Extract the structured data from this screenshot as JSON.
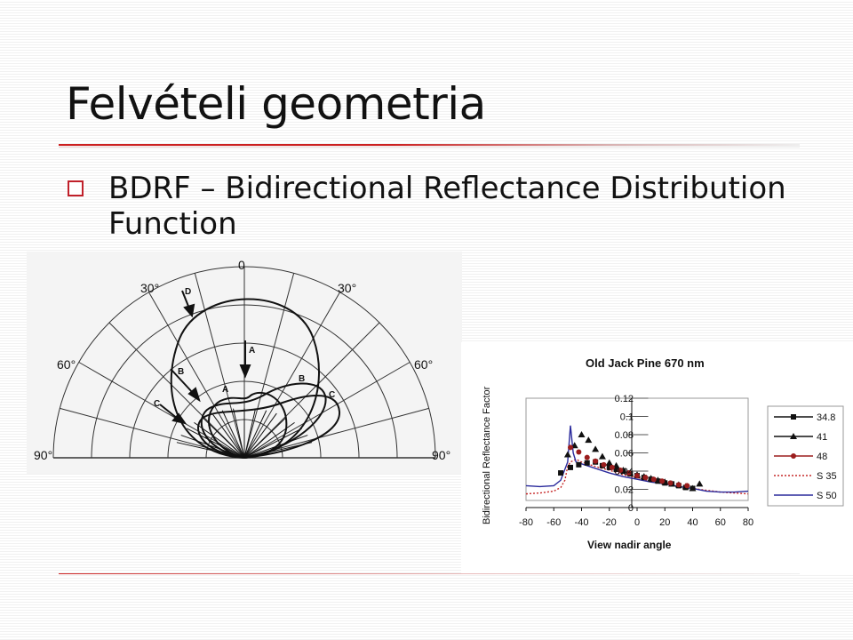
{
  "slide": {
    "title": "Felvételi geometria",
    "bullet": "BDRF – Bidirectional Reflectance Distribution Function"
  },
  "colors": {
    "accent": "#cc1f1f",
    "bullet_square": "#c0202a"
  },
  "polar_diagram": {
    "angle_labels": [
      "0",
      "30°",
      "30°",
      "60°",
      "60°",
      "90°",
      "90°"
    ],
    "curve_labels": [
      "A",
      "B",
      "C",
      "D"
    ]
  },
  "chart_data": {
    "type": "scatter",
    "title": "Old Jack Pine 670 nm",
    "xlabel": "View nadir angle",
    "ylabel": "Bidirectional Reflectance Factor",
    "xlim": [
      -80,
      80
    ],
    "ylim": [
      0,
      0.12
    ],
    "x_ticks": [
      "-80",
      "-60",
      "-40",
      "-20",
      "0",
      "20",
      "40",
      "60",
      "80"
    ],
    "y_ticks": [
      "0",
      "0.02",
      "0.04",
      "0.06",
      "0.08",
      "0.1",
      "0.12"
    ],
    "legend_position": "right",
    "series": [
      {
        "name": "34.8",
        "marker": "square",
        "color": "#111111",
        "x": [
          -55,
          -48,
          -42,
          -36,
          -30,
          -25,
          -20,
          -15,
          -10,
          -5,
          0,
          5,
          10,
          15,
          20,
          25,
          30,
          35,
          40
        ],
        "y": [
          0.038,
          0.044,
          0.047,
          0.049,
          0.05,
          0.046,
          0.044,
          0.042,
          0.04,
          0.037,
          0.035,
          0.033,
          0.031,
          0.029,
          0.027,
          0.026,
          0.024,
          0.022,
          0.021
        ]
      },
      {
        "name": "41",
        "marker": "triangle",
        "color": "#111111",
        "x": [
          -50,
          -45,
          -40,
          -35,
          -30,
          -25,
          -20,
          -15,
          -10,
          -5,
          0,
          5,
          10,
          15,
          20,
          25,
          30,
          35,
          40,
          45
        ],
        "y": [
          0.058,
          0.068,
          0.08,
          0.074,
          0.064,
          0.056,
          0.049,
          0.046,
          0.041,
          0.038,
          0.036,
          0.034,
          0.032,
          0.03,
          0.028,
          0.026,
          0.025,
          0.023,
          0.021,
          0.026
        ]
      },
      {
        "name": "48",
        "marker": "circle",
        "color": "#9b1d1d",
        "x": [
          -48,
          -42,
          -36,
          -30,
          -24,
          -18,
          -12,
          -6,
          0,
          6,
          12,
          18,
          24,
          30,
          36
        ],
        "y": [
          0.066,
          0.061,
          0.055,
          0.051,
          0.047,
          0.044,
          0.041,
          0.038,
          0.035,
          0.033,
          0.031,
          0.029,
          0.027,
          0.025,
          0.024
        ]
      },
      {
        "name": "S 35",
        "line": "dotted",
        "color": "#c62828",
        "x": [
          -80,
          -70,
          -60,
          -55,
          -52,
          -50,
          -48,
          -44,
          -40,
          -30,
          -20,
          -10,
          0,
          10,
          20,
          30,
          40,
          50,
          60,
          70,
          80
        ],
        "y": [
          0.015,
          0.016,
          0.018,
          0.022,
          0.03,
          0.045,
          0.05,
          0.053,
          0.05,
          0.045,
          0.041,
          0.036,
          0.033,
          0.029,
          0.026,
          0.023,
          0.021,
          0.019,
          0.017,
          0.016,
          0.015
        ]
      },
      {
        "name": "S 50",
        "line": "solid",
        "color": "#2a2a9c",
        "x": [
          -80,
          -70,
          -60,
          -55,
          -50,
          -48,
          -46,
          -44,
          -40,
          -30,
          -20,
          -10,
          0,
          10,
          20,
          30,
          40,
          50,
          60,
          70,
          80
        ],
        "y": [
          0.024,
          0.023,
          0.024,
          0.03,
          0.05,
          0.09,
          0.06,
          0.05,
          0.048,
          0.043,
          0.038,
          0.034,
          0.031,
          0.028,
          0.026,
          0.023,
          0.021,
          0.018,
          0.017,
          0.017,
          0.018
        ]
      }
    ]
  }
}
